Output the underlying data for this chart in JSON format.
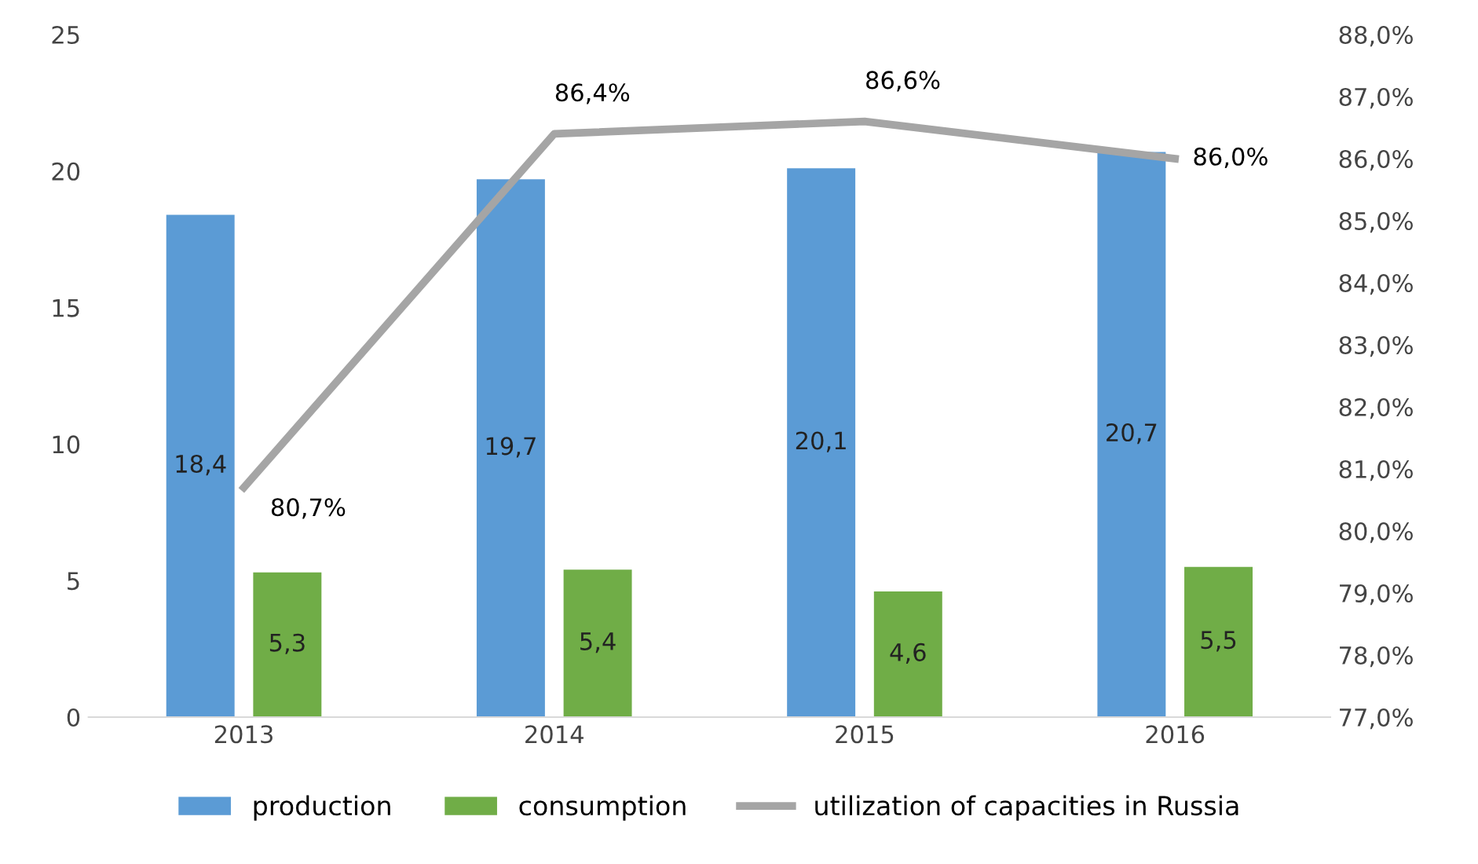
{
  "chart_data": {
    "type": "bar",
    "categories": [
      "2013",
      "2014",
      "2015",
      "2016"
    ],
    "series": [
      {
        "name": "production",
        "color": "#5b9bd5",
        "values": [
          18.4,
          19.7,
          20.1,
          20.7
        ],
        "value_labels": [
          "18,4",
          "19,7",
          "20,1",
          "20,7"
        ]
      },
      {
        "name": "consumption",
        "color": "#70ad47",
        "values": [
          5.3,
          5.4,
          4.6,
          5.5
        ],
        "value_labels": [
          "5,3",
          "5,4",
          "4,6",
          "5,5"
        ]
      },
      {
        "name": "utilization of capacities in Russia",
        "type": "line",
        "axis": "y2",
        "color": "#a5a5a5",
        "values": [
          80.7,
          86.4,
          86.6,
          86.0
        ],
        "value_labels": [
          "80,7%",
          "86,4%",
          "86,6%",
          "86,0%"
        ]
      }
    ],
    "ylim": [
      0,
      25
    ],
    "yticks": [
      0,
      5,
      10,
      15,
      20,
      25
    ],
    "y2lim": [
      77,
      88
    ],
    "y2ticks": [
      {
        "value": 77,
        "label": "77,0%"
      },
      {
        "value": 78,
        "label": "78,0%"
      },
      {
        "value": 79,
        "label": "79,0%"
      },
      {
        "value": 80,
        "label": "80,0%"
      },
      {
        "value": 81,
        "label": "81,0%"
      },
      {
        "value": 82,
        "label": "82,0%"
      },
      {
        "value": 83,
        "label": "83,0%"
      },
      {
        "value": 84,
        "label": "84,0%"
      },
      {
        "value": 85,
        "label": "85,0%"
      },
      {
        "value": 86,
        "label": "86,0%"
      },
      {
        "value": 87,
        "label": "87,0%"
      },
      {
        "value": 88,
        "label": "88,0%"
      }
    ],
    "grid": false,
    "legend": "bottom",
    "marker": "none",
    "line_style": "solid"
  }
}
